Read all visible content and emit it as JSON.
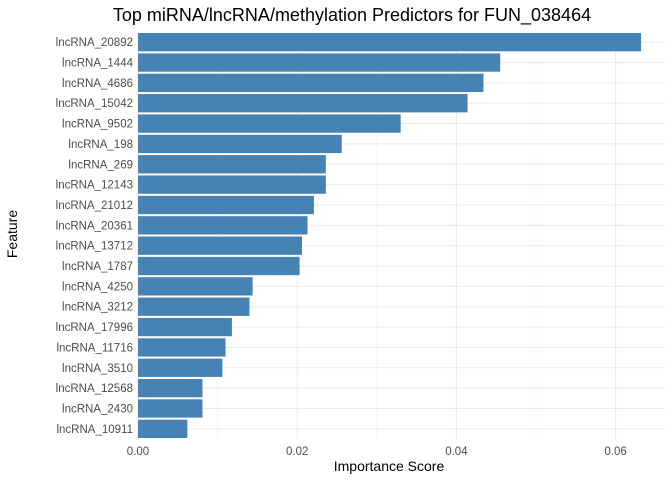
{
  "chart_data": {
    "type": "bar",
    "orientation": "horizontal",
    "title": "Top miRNA/lncRNA/methylation Predictors for FUN_038464",
    "xlabel": "Importance Score",
    "ylabel": "Feature",
    "xlim": [
      0,
      0.066
    ],
    "x_ticks": [
      0,
      0.02,
      0.04,
      0.06
    ],
    "x_tick_labels": [
      "0.00",
      "0.02",
      "0.04",
      "0.06"
    ],
    "grid": true,
    "bar_color": "#4682B4",
    "categories": [
      "lncRNA_20892",
      "lncRNA_1444",
      "lncRNA_4686",
      "lncRNA_15042",
      "lncRNA_9502",
      "lncRNA_198",
      "lncRNA_269",
      "lncRNA_12143",
      "lncRNA_21012",
      "lncRNA_20361",
      "lncRNA_13712",
      "lncRNA_1787",
      "lncRNA_4250",
      "lncRNA_3212",
      "lncRNA_17996",
      "lncRNA_11716",
      "lncRNA_3510",
      "lncRNA_12568",
      "lncRNA_2430",
      "lncRNA_10911"
    ],
    "values": [
      0.0632,
      0.0455,
      0.0434,
      0.0414,
      0.033,
      0.0256,
      0.0236,
      0.0236,
      0.0221,
      0.0213,
      0.0206,
      0.0203,
      0.0144,
      0.014,
      0.0118,
      0.011,
      0.0106,
      0.0081,
      0.0081,
      0.0062
    ]
  }
}
